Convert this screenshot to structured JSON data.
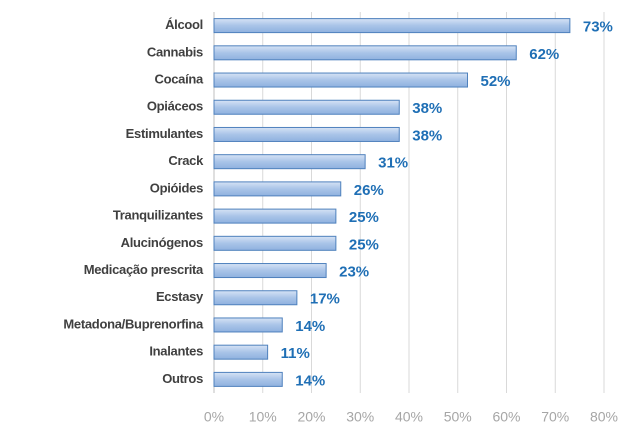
{
  "chart_data": {
    "type": "bar",
    "orientation": "horizontal",
    "categories": [
      "Álcool",
      "Cannabis",
      "Cocaína",
      "Opiáceos",
      "Estimulantes",
      "Crack",
      "Opióides",
      "Tranquilizantes",
      "Alucinógenos",
      "Medicação prescrita",
      "Ecstasy",
      "Metadona/Buprenorfina",
      "Inalantes",
      "Outros"
    ],
    "values": [
      73,
      62,
      52,
      38,
      38,
      31,
      26,
      25,
      25,
      23,
      17,
      14,
      11,
      14
    ],
    "value_labels": [
      "73%",
      "62%",
      "52%",
      "38%",
      "38%",
      "31%",
      "26%",
      "25%",
      "25%",
      "23%",
      "17%",
      "14%",
      "11%",
      "14%"
    ],
    "color": "#a9c4e8",
    "xlim": [
      0,
      80
    ],
    "xticks": [
      {
        "value": 0,
        "label": "0%"
      },
      {
        "value": 10,
        "label": "10%"
      },
      {
        "value": 20,
        "label": "20%"
      },
      {
        "value": 30,
        "label": "30%"
      },
      {
        "value": 40,
        "label": "40%"
      },
      {
        "value": 50,
        "label": "50%"
      },
      {
        "value": 60,
        "label": "60%"
      },
      {
        "value": 70,
        "label": "70%"
      },
      {
        "value": 80,
        "label": "80%"
      }
    ],
    "grid": true
  }
}
